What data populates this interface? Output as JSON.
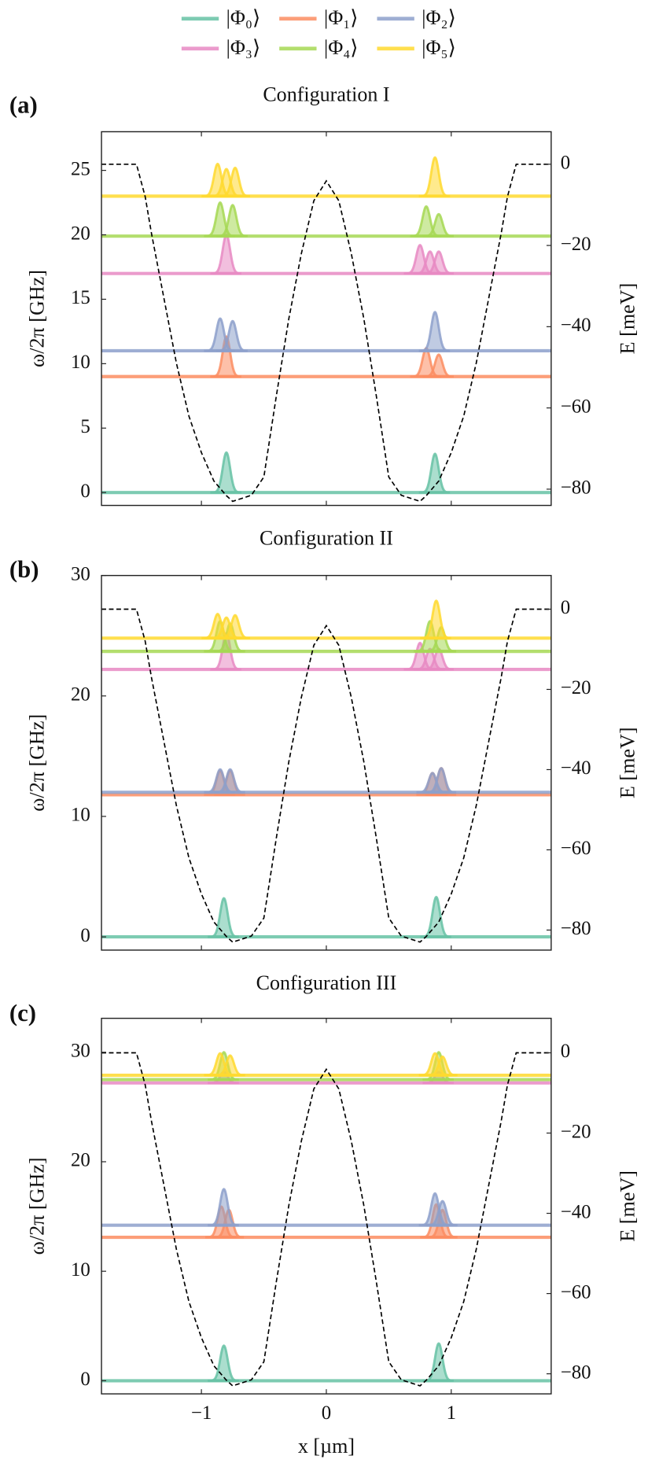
{
  "chart_data": [
    {
      "type": "line",
      "panel_label": "(a)",
      "title": "Configuration I",
      "y_label": "ω/2π [GHz]",
      "y2_label": "E [meV]",
      "xlim": [
        -1.8,
        1.8
      ],
      "xticks": [
        -1,
        0,
        1
      ],
      "ylim": [
        -1,
        28
      ],
      "yticks": [
        0,
        5,
        10,
        15,
        20,
        25
      ],
      "y2lim": [
        -84,
        8
      ],
      "y2ticks": [
        0,
        {
          "value": -20,
          "label": "−20"
        },
        {
          "value": -40,
          "label": "−40"
        },
        {
          "value": -60,
          "label": "−60"
        },
        {
          "value": -80,
          "label": "−80"
        }
      ],
      "series": [
        {
          "name": "|Φ₀⟩",
          "color": "#66c2a5",
          "level": 0,
          "peaks": [
            {
              "x": -0.8,
              "height": 3.1
            },
            {
              "x": 0.87,
              "height": 3.0
            }
          ]
        },
        {
          "name": "|Φ₁⟩",
          "color": "#fc8d62",
          "level": 9.0,
          "peaks": [
            {
              "x": -0.8,
              "height": 3.1
            },
            {
              "x": 0.8,
              "height": 2.2
            },
            {
              "x": 0.9,
              "height": 1.7
            }
          ]
        },
        {
          "name": "|Φ₂⟩",
          "color": "#8da0cb",
          "level": 11.0,
          "peaks": [
            {
              "x": -0.85,
              "height": 2.5
            },
            {
              "x": -0.75,
              "height": 2.3
            },
            {
              "x": 0.87,
              "height": 3.0
            }
          ]
        },
        {
          "name": "|Φ₃⟩",
          "color": "#e78ac3",
          "level": 17.0,
          "peaks": [
            {
              "x": -0.8,
              "height": 3.0
            },
            {
              "x": 0.75,
              "height": 2.2
            },
            {
              "x": 0.83,
              "height": 1.7
            },
            {
              "x": 0.9,
              "height": 1.7
            }
          ]
        },
        {
          "name": "|Φ₄⟩",
          "color": "#a6d854",
          "level": 19.9,
          "peaks": [
            {
              "x": -0.85,
              "height": 2.6
            },
            {
              "x": -0.75,
              "height": 2.4
            },
            {
              "x": 0.8,
              "height": 2.3
            },
            {
              "x": 0.9,
              "height": 1.7
            }
          ]
        },
        {
          "name": "|Φ₅⟩",
          "color": "#ffd92f",
          "level": 23.0,
          "peaks": [
            {
              "x": -0.87,
              "height": 2.5
            },
            {
              "x": -0.8,
              "height": 2.1
            },
            {
              "x": -0.73,
              "height": 2.2
            },
            {
              "x": 0.87,
              "height": 3.0
            }
          ]
        }
      ],
      "potential": {
        "axis": "y2",
        "color": "#000000",
        "x": [
          -1.8,
          -1.52,
          -1.45,
          -1.4,
          -1.3,
          -1.2,
          -1.1,
          -1.0,
          -0.9,
          -0.8,
          -0.75,
          -0.6,
          -0.5,
          -0.4,
          -0.3,
          -0.2,
          -0.1,
          0,
          0.1,
          0.2,
          0.3,
          0.4,
          0.5,
          0.6,
          0.75,
          0.8,
          0.9,
          1.0,
          1.1,
          1.2,
          1.3,
          1.4,
          1.45,
          1.52,
          1.8
        ],
        "values": [
          0,
          0,
          -8,
          -17,
          -33,
          -49,
          -62,
          -71,
          -78,
          -81.6,
          -83,
          -81.5,
          -77,
          -57,
          -38,
          -22,
          -9,
          -4.1,
          -9,
          -22,
          -38,
          -57,
          -77,
          -81.5,
          -83,
          -81.6,
          -78,
          -71,
          -62,
          -49,
          -33,
          -17,
          -8,
          0,
          0
        ]
      }
    },
    {
      "type": "line",
      "panel_label": "(b)",
      "title": "Configuration II",
      "y_label": "ω/2π [GHz]",
      "y2_label": "E [meV]",
      "xlim": [
        -1.8,
        1.8
      ],
      "xticks": [
        -1,
        0,
        1
      ],
      "ylim": [
        -1.1,
        30
      ],
      "yticks": [
        0,
        10,
        20,
        30
      ],
      "y2lim": [
        -85,
        8.4
      ],
      "y2ticks": [
        0,
        {
          "value": -20,
          "label": "−20"
        },
        {
          "value": -40,
          "label": "−40"
        },
        {
          "value": -60,
          "label": "−60"
        },
        {
          "value": -80,
          "label": "−80"
        }
      ],
      "series": [
        {
          "color": "#66c2a5",
          "level": 0,
          "peaks": [
            {
              "x": -0.82,
              "height": 3.2
            },
            {
              "x": 0.88,
              "height": 3.3
            }
          ]
        },
        {
          "color": "#fc8d62",
          "level": 11.8,
          "peaks": [
            {
              "x": -0.85,
              "height": 2.0
            },
            {
              "x": -0.77,
              "height": 2.0
            },
            {
              "x": 0.85,
              "height": 1.8
            },
            {
              "x": 0.92,
              "height": 2.2
            }
          ]
        },
        {
          "color": "#8da0cb",
          "level": 12.0,
          "peaks": [
            {
              "x": -0.85,
              "height": 1.9
            },
            {
              "x": -0.77,
              "height": 1.9
            },
            {
              "x": 0.85,
              "height": 1.6
            },
            {
              "x": 0.92,
              "height": 2.0
            }
          ]
        },
        {
          "color": "#e78ac3",
          "level": 22.2,
          "peaks": [
            {
              "x": -0.8,
              "height": 3.0
            },
            {
              "x": 0.75,
              "height": 2.2
            },
            {
              "x": 0.83,
              "height": 1.7
            },
            {
              "x": 0.9,
              "height": 1.7
            }
          ]
        },
        {
          "color": "#a6d854",
          "level": 23.7,
          "peaks": [
            {
              "x": -0.85,
              "height": 2.5
            },
            {
              "x": -0.77,
              "height": 2.3
            },
            {
              "x": 0.83,
              "height": 2.5
            },
            {
              "x": 0.92,
              "height": 2.0
            }
          ]
        },
        {
          "color": "#ffd92f",
          "level": 24.8,
          "peaks": [
            {
              "x": -0.87,
              "height": 2.0
            },
            {
              "x": -0.8,
              "height": 1.7
            },
            {
              "x": -0.73,
              "height": 1.9
            },
            {
              "x": 0.88,
              "height": 3.1
            }
          ]
        }
      ],
      "potential": {
        "axis": "y2",
        "color": "#000000",
        "x": [
          -1.8,
          -1.52,
          -1.45,
          -1.4,
          -1.3,
          -1.2,
          -1.1,
          -1.0,
          -0.9,
          -0.8,
          -0.75,
          -0.6,
          -0.5,
          -0.4,
          -0.3,
          -0.2,
          -0.1,
          0,
          0.1,
          0.2,
          0.3,
          0.4,
          0.5,
          0.6,
          0.75,
          0.8,
          0.9,
          1.0,
          1.1,
          1.2,
          1.3,
          1.4,
          1.45,
          1.52,
          1.8
        ],
        "values": [
          0,
          0,
          -8,
          -17,
          -33,
          -49,
          -62,
          -71,
          -78,
          -81.6,
          -83,
          -81.5,
          -77,
          -57,
          -38,
          -22,
          -9,
          -4.1,
          -9,
          -22,
          -38,
          -57,
          -77,
          -81.5,
          -83,
          -81.6,
          -78,
          -71,
          -62,
          -49,
          -33,
          -17,
          -8,
          0,
          0
        ]
      }
    },
    {
      "type": "line",
      "panel_label": "(c)",
      "title": "Configuration III",
      "y_label": "ω/2π [GHz]",
      "y2_label": "E [meV]",
      "x_label": "x [µm]",
      "xlim": [
        -1.8,
        1.8
      ],
      "xticks": [
        {
          "value": -1,
          "label": "−1"
        },
        0,
        1
      ],
      "ylim": [
        -1.2,
        33.1
      ],
      "yticks": [
        0,
        10,
        20,
        30
      ],
      "y2lim": [
        -85,
        8.6
      ],
      "y2ticks": [
        0,
        {
          "value": -20,
          "label": "−20"
        },
        {
          "value": -40,
          "label": "−40"
        },
        {
          "value": -60,
          "label": "−60"
        },
        {
          "value": -80,
          "label": "−80"
        }
      ],
      "series": [
        {
          "color": "#66c2a5",
          "level": 0,
          "peaks": [
            {
              "x": -0.82,
              "height": 3.2
            },
            {
              "x": 0.9,
              "height": 3.4
            }
          ]
        },
        {
          "color": "#fc8d62",
          "level": 13.1,
          "peaks": [
            {
              "x": -0.84,
              "height": 2.8
            },
            {
              "x": -0.78,
              "height": 2.5
            },
            {
              "x": 0.88,
              "height": 3.0
            },
            {
              "x": 0.93,
              "height": 2.5
            }
          ]
        },
        {
          "color": "#8da0cb",
          "level": 14.2,
          "peaks": [
            {
              "x": -0.82,
              "height": 3.3
            },
            {
              "x": 0.87,
              "height": 2.9
            },
            {
              "x": 0.93,
              "height": 2.2
            }
          ]
        },
        {
          "color": "#e78ac3",
          "level": 27.2,
          "peaks": [
            {
              "x": -0.82,
              "height": 1.0
            },
            {
              "x": 0.9,
              "height": 1.0
            }
          ]
        },
        {
          "color": "#a6d854",
          "level": 27.5,
          "peaks": [
            {
              "x": -0.82,
              "height": 2.5
            },
            {
              "x": 0.9,
              "height": 2.5
            }
          ]
        },
        {
          "color": "#ffd92f",
          "level": 27.9,
          "peaks": [
            {
              "x": -0.85,
              "height": 2.0
            },
            {
              "x": -0.77,
              "height": 1.8
            },
            {
              "x": 0.87,
              "height": 2.0
            },
            {
              "x": 0.93,
              "height": 1.7
            }
          ]
        }
      ],
      "potential": {
        "axis": "y2",
        "color": "#000000",
        "x": [
          -1.8,
          -1.52,
          -1.45,
          -1.4,
          -1.3,
          -1.2,
          -1.1,
          -1.0,
          -0.9,
          -0.8,
          -0.75,
          -0.6,
          -0.5,
          -0.4,
          -0.3,
          -0.2,
          -0.1,
          0,
          0.1,
          0.2,
          0.3,
          0.4,
          0.5,
          0.6,
          0.75,
          0.8,
          0.9,
          1.0,
          1.1,
          1.2,
          1.3,
          1.4,
          1.45,
          1.52,
          1.8
        ],
        "values": [
          0,
          0,
          -8,
          -17,
          -33,
          -49,
          -62,
          -71,
          -78,
          -81.6,
          -83,
          -81.5,
          -77,
          -57,
          -38,
          -22,
          -9,
          -4.1,
          -9,
          -22,
          -38,
          -57,
          -77,
          -81.5,
          -83,
          -81.6,
          -78,
          -71,
          -62,
          -49,
          -33,
          -17,
          -8,
          0,
          0
        ]
      }
    }
  ]
}
